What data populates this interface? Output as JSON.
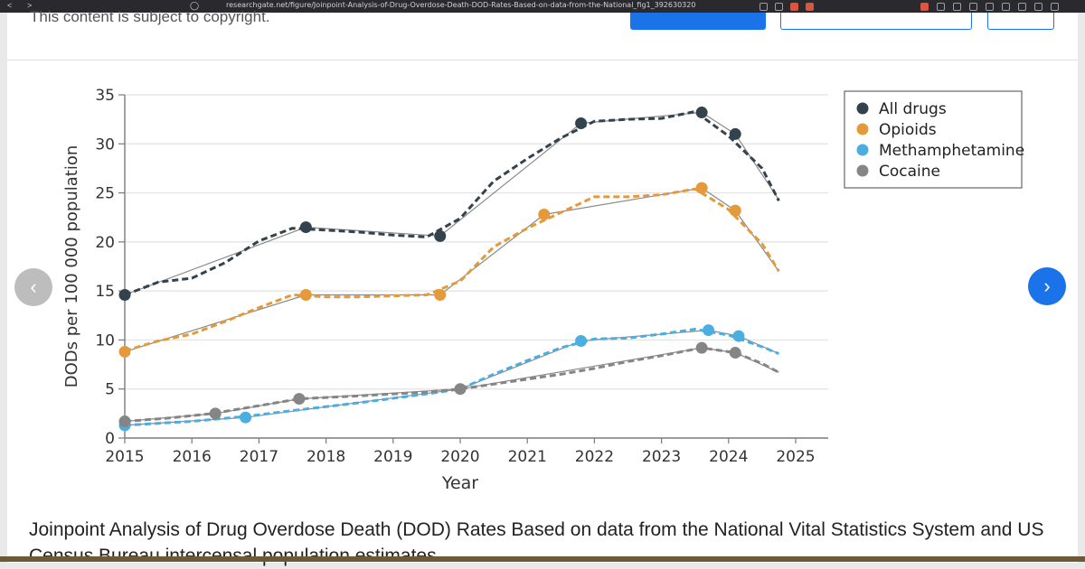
{
  "browser": {
    "url": "researchgate.net/figure/Joinpoint-Analysis-of-Drug-Overdose-Death-DOD-Rates-Based-on-data-from-the-National_fig1_392630320",
    "back_glyph": "<",
    "forward_glyph": ">"
  },
  "page": {
    "copyright_notice": "This content is subject to copyright.",
    "caption": "Joinpoint Analysis of Drug Overdose Death (DOD) Rates Based on data from the National Vital Statistics System and US Census Bureau intercensal population estimates",
    "prev_glyph": "‹",
    "next_glyph": "›"
  },
  "chart_data": {
    "type": "line",
    "title": "",
    "xlabel": "Year",
    "ylabel": "DODs per 100 000 population",
    "xlim": [
      2015,
      2025
    ],
    "ylim": [
      0,
      35
    ],
    "xticks": [
      2015,
      2016,
      2017,
      2018,
      2019,
      2020,
      2021,
      2022,
      2023,
      2024,
      2025
    ],
    "yticks": [
      0,
      5,
      10,
      15,
      20,
      25,
      30,
      35
    ],
    "grid": "horizontal",
    "legend_position": "top-right",
    "series": [
      {
        "name": "All drugs",
        "color": "#33434d",
        "observed": [
          [
            2015,
            14.6
          ],
          [
            2015.5,
            15.9
          ],
          [
            2016,
            16.3
          ],
          [
            2016.5,
            17.9
          ],
          [
            2017,
            20.1
          ],
          [
            2017.5,
            21.4
          ],
          [
            2018,
            21.2
          ],
          [
            2018.5,
            21.0
          ],
          [
            2019,
            20.7
          ],
          [
            2019.5,
            20.5
          ],
          [
            2020,
            22.4
          ],
          [
            2020.5,
            26.2
          ],
          [
            2021,
            28.5
          ],
          [
            2021.5,
            30.6
          ],
          [
            2022,
            32.3
          ],
          [
            2022.5,
            32.5
          ],
          [
            2023,
            32.6
          ],
          [
            2023.5,
            33.3
          ],
          [
            2024,
            30.8
          ],
          [
            2024.5,
            27.5
          ],
          [
            2024.75,
            24.2
          ]
        ],
        "fit": [
          [
            2015,
            14.6
          ],
          [
            2017.7,
            21.5
          ],
          [
            2019.7,
            20.6
          ],
          [
            2021.8,
            32.1
          ],
          [
            2023.6,
            33.2
          ],
          [
            2024.1,
            31.0
          ],
          [
            2024.75,
            24.3
          ]
        ],
        "joinpoints": [
          [
            2015,
            14.6
          ],
          [
            2017.7,
            21.5
          ],
          [
            2019.7,
            20.6
          ],
          [
            2021.8,
            32.1
          ],
          [
            2023.6,
            33.2
          ],
          [
            2024.1,
            31.0
          ]
        ]
      },
      {
        "name": "Opioids",
        "color": "#e49a3a",
        "observed": [
          [
            2015,
            8.9
          ],
          [
            2015.5,
            9.9
          ],
          [
            2016,
            10.6
          ],
          [
            2016.5,
            11.9
          ],
          [
            2017,
            13.3
          ],
          [
            2017.5,
            14.6
          ],
          [
            2018,
            14.4
          ],
          [
            2018.5,
            14.4
          ],
          [
            2019,
            14.5
          ],
          [
            2019.5,
            14.6
          ],
          [
            2020,
            16.0
          ],
          [
            2020.5,
            19.5
          ],
          [
            2021,
            21.4
          ],
          [
            2021.5,
            23.0
          ],
          [
            2022,
            24.6
          ],
          [
            2022.5,
            24.6
          ],
          [
            2023,
            24.8
          ],
          [
            2023.5,
            25.4
          ],
          [
            2024,
            23.3
          ],
          [
            2024.5,
            19.8
          ],
          [
            2024.75,
            17.0
          ]
        ],
        "fit": [
          [
            2015,
            8.8
          ],
          [
            2017.7,
            14.6
          ],
          [
            2019.7,
            14.6
          ],
          [
            2021.25,
            22.8
          ],
          [
            2023.6,
            25.5
          ],
          [
            2024.1,
            23.2
          ],
          [
            2024.75,
            17.0
          ]
        ],
        "joinpoints": [
          [
            2015,
            8.8
          ],
          [
            2017.7,
            14.6
          ],
          [
            2019.7,
            14.6
          ],
          [
            2021.25,
            22.8
          ],
          [
            2023.6,
            25.5
          ],
          [
            2024.1,
            23.2
          ]
        ]
      },
      {
        "name": "Methamphetamine",
        "color": "#4aaee0",
        "observed": [
          [
            2015,
            1.3
          ],
          [
            2016,
            1.7
          ],
          [
            2016.8,
            2.2
          ],
          [
            2017.5,
            2.8
          ],
          [
            2018.5,
            3.6
          ],
          [
            2019.5,
            4.5
          ],
          [
            2020,
            5.0
          ],
          [
            2020.5,
            6.5
          ],
          [
            2021,
            7.9
          ],
          [
            2021.5,
            9.2
          ],
          [
            2022,
            10.1
          ],
          [
            2022.5,
            10.2
          ],
          [
            2023,
            10.6
          ],
          [
            2023.5,
            11.1
          ],
          [
            2024,
            10.5
          ],
          [
            2024.5,
            9.3
          ],
          [
            2024.75,
            8.6
          ]
        ],
        "fit": [
          [
            2015,
            1.3
          ],
          [
            2016.8,
            2.1
          ],
          [
            2020,
            5.0
          ],
          [
            2021.8,
            9.9
          ],
          [
            2023.7,
            11.0
          ],
          [
            2024.15,
            10.4
          ],
          [
            2024.75,
            8.6
          ]
        ],
        "joinpoints": [
          [
            2015,
            1.3
          ],
          [
            2016.8,
            2.1
          ],
          [
            2021.8,
            9.9
          ],
          [
            2023.7,
            11.0
          ],
          [
            2024.15,
            10.4
          ]
        ]
      },
      {
        "name": "Cocaine",
        "color": "#858585",
        "observed": [
          [
            2015,
            1.7
          ],
          [
            2015.6,
            2.0
          ],
          [
            2016.3,
            2.5
          ],
          [
            2017,
            3.3
          ],
          [
            2017.6,
            4.0
          ],
          [
            2018.5,
            4.3
          ],
          [
            2019.5,
            4.7
          ],
          [
            2020,
            5.0
          ],
          [
            2020.8,
            5.8
          ],
          [
            2021.5,
            6.5
          ],
          [
            2022,
            7.1
          ],
          [
            2022.5,
            7.8
          ],
          [
            2023,
            8.4
          ],
          [
            2023.6,
            9.2
          ],
          [
            2024.1,
            8.7
          ],
          [
            2024.5,
            7.6
          ],
          [
            2024.75,
            6.7
          ]
        ],
        "fit": [
          [
            2015,
            1.7
          ],
          [
            2016.35,
            2.5
          ],
          [
            2017.6,
            4.0
          ],
          [
            2020,
            5.0
          ],
          [
            2023.6,
            9.2
          ],
          [
            2024.1,
            8.7
          ],
          [
            2024.75,
            6.7
          ]
        ],
        "joinpoints": [
          [
            2015,
            1.7
          ],
          [
            2016.35,
            2.5
          ],
          [
            2017.6,
            4.0
          ],
          [
            2020,
            5.0
          ],
          [
            2023.6,
            9.2
          ],
          [
            2024.1,
            8.7
          ]
        ]
      }
    ]
  },
  "colors": {
    "accent": "#1a73e8",
    "grid": "#e2e2e2",
    "axis": "#7a7a7a"
  },
  "icons": [
    "back-icon",
    "forward-icon",
    "bookmark-icon",
    "chevron-left-icon",
    "chevron-right-icon"
  ]
}
